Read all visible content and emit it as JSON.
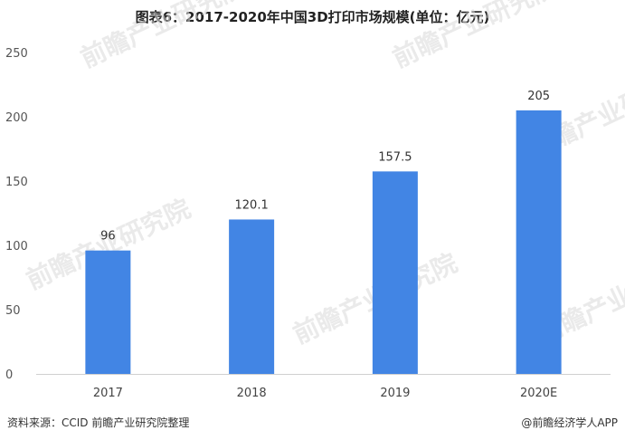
{
  "chart_data": {
    "type": "bar",
    "title": "图表6：2017-2020年中国3D打印市场规模(单位：亿元)",
    "categories": [
      "2017",
      "2018",
      "2019",
      "2020E"
    ],
    "values": [
      96,
      120.1,
      157.5,
      205
    ],
    "value_labels": [
      "96",
      "120.1",
      "157.5",
      "205"
    ],
    "ylim": [
      0,
      250
    ],
    "yticks": [
      "0",
      "50",
      "100",
      "150",
      "200",
      "250"
    ],
    "grid": false,
    "legend": "none",
    "bar_color": "#4285e4"
  },
  "watermark": {
    "text": "前瞻产业研究院"
  },
  "footer": {
    "source": "资料来源：CCID 前瞻产业研究院整理",
    "brand": "@前瞻经济学人APP"
  }
}
